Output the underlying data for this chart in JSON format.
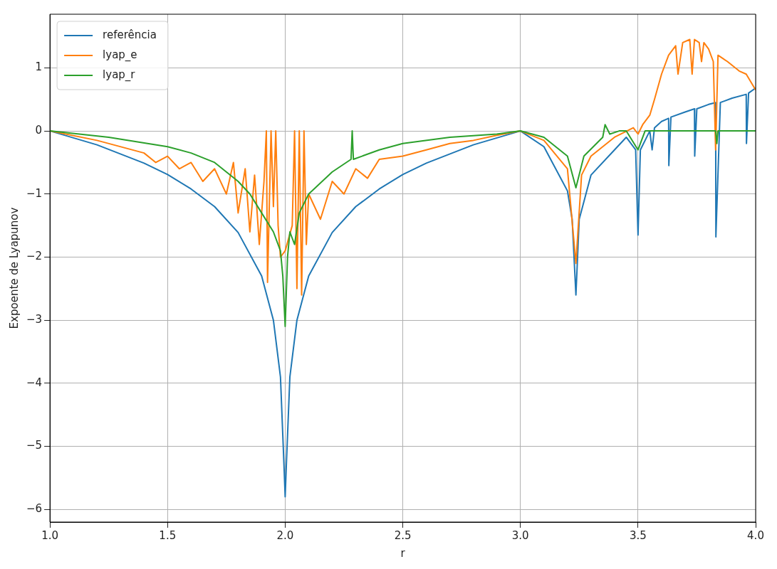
{
  "chart_data": {
    "type": "line",
    "xlabel": "r",
    "ylabel": "Expoente de Lyapunov",
    "xlim": [
      1.0,
      4.0
    ],
    "xticks": [
      {
        "value": 1.0,
        "label": "1.0"
      },
      1.5,
      {
        "value": 2.0,
        "label": "2.0"
      },
      2.5,
      {
        "value": 3.0,
        "label": "3.0"
      },
      3.5,
      {
        "value": 4.0,
        "label": "4.0"
      }
    ],
    "ylim": [
      -6.2,
      1.85
    ],
    "yticks": [
      -6,
      -5,
      -4,
      -3,
      -2,
      -1,
      0,
      1
    ],
    "grid": true,
    "legend": "top left",
    "marker": "none",
    "line_style": "solid",
    "series": [
      {
        "name": "referência",
        "color": "#1f77b4",
        "x": [
          1.0,
          1.2,
          1.4,
          1.5,
          1.6,
          1.7,
          1.8,
          1.9,
          1.95,
          1.98,
          1.995,
          2.0,
          2.005,
          2.02,
          2.05,
          2.1,
          2.2,
          2.3,
          2.4,
          2.5,
          2.6,
          2.8,
          3.0,
          3.1,
          3.2,
          3.22,
          3.236,
          3.25,
          3.3,
          3.4,
          3.45,
          3.49,
          3.5,
          3.51,
          3.55,
          3.56,
          3.57,
          3.6,
          3.63,
          3.631,
          3.64,
          3.7,
          3.74,
          3.741,
          3.75,
          3.8,
          3.83,
          3.831,
          3.85,
          3.9,
          3.96,
          3.961,
          3.97,
          4.0
        ],
        "values": [
          0,
          -0.22,
          -0.51,
          -0.69,
          -0.92,
          -1.2,
          -1.61,
          -2.3,
          -3.0,
          -3.9,
          -5.3,
          -5.8,
          -5.3,
          -3.9,
          -3.0,
          -2.3,
          -1.61,
          -1.2,
          -0.92,
          -0.69,
          -0.51,
          -0.22,
          0,
          -0.25,
          -0.95,
          -1.4,
          -2.6,
          -1.4,
          -0.7,
          -0.3,
          -0.1,
          -0.3,
          -1.65,
          -0.3,
          0.0,
          -0.3,
          0.05,
          0.15,
          0.2,
          -0.55,
          0.22,
          0.3,
          0.35,
          -0.4,
          0.35,
          0.42,
          0.45,
          -1.68,
          0.45,
          0.52,
          0.58,
          -0.2,
          0.6,
          0.68
        ]
      },
      {
        "name": "lyap_e",
        "color": "#ff7f0e",
        "x": [
          1.0,
          1.2,
          1.4,
          1.45,
          1.5,
          1.55,
          1.6,
          1.65,
          1.7,
          1.75,
          1.78,
          1.8,
          1.83,
          1.85,
          1.87,
          1.89,
          1.91,
          1.92,
          1.925,
          1.94,
          1.95,
          1.96,
          1.97,
          1.98,
          2.0,
          2.03,
          2.04,
          2.05,
          2.06,
          2.07,
          2.08,
          2.09,
          2.1,
          2.15,
          2.2,
          2.25,
          2.3,
          2.35,
          2.4,
          2.5,
          2.6,
          2.7,
          2.8,
          2.9,
          3.0,
          3.1,
          3.2,
          3.236,
          3.26,
          3.3,
          3.4,
          3.48,
          3.5,
          3.52,
          3.55,
          3.57,
          3.6,
          3.63,
          3.66,
          3.67,
          3.69,
          3.72,
          3.73,
          3.74,
          3.76,
          3.77,
          3.78,
          3.8,
          3.82,
          3.83,
          3.84,
          3.88,
          3.93,
          3.96,
          4.0
        ],
        "values": [
          0,
          -0.15,
          -0.35,
          -0.5,
          -0.4,
          -0.6,
          -0.5,
          -0.8,
          -0.6,
          -1.0,
          -0.5,
          -1.3,
          -0.6,
          -1.6,
          -0.7,
          -1.8,
          -0.8,
          0,
          -2.4,
          0,
          -1.2,
          0,
          -1.5,
          -2.0,
          -1.9,
          -1.5,
          0,
          -2.5,
          0,
          -2.6,
          0,
          -1.8,
          -1.0,
          -1.4,
          -0.8,
          -1.0,
          -0.6,
          -0.75,
          -0.45,
          -0.4,
          -0.3,
          -0.2,
          -0.15,
          -0.07,
          0,
          -0.15,
          -0.6,
          -2.1,
          -0.7,
          -0.4,
          -0.1,
          0.05,
          -0.05,
          0.1,
          0.25,
          0.5,
          0.9,
          1.2,
          1.35,
          0.9,
          1.4,
          1.45,
          0.9,
          1.45,
          1.4,
          1.1,
          1.4,
          1.3,
          1.1,
          -0.3,
          1.2,
          1.1,
          0.95,
          0.9,
          0.65
        ]
      },
      {
        "name": "lyap_r",
        "color": "#2ca02c",
        "x": [
          1.0,
          1.25,
          1.5,
          1.6,
          1.7,
          1.8,
          1.85,
          1.9,
          1.95,
          1.98,
          1.99,
          2.0,
          2.01,
          2.02,
          2.04,
          2.06,
          2.1,
          2.2,
          2.28,
          2.285,
          2.29,
          2.4,
          2.5,
          2.7,
          2.9,
          3.0,
          3.1,
          3.2,
          3.236,
          3.27,
          3.35,
          3.36,
          3.38,
          3.42,
          3.45,
          3.5,
          3.53,
          3.83,
          3.835,
          3.84,
          4.0
        ],
        "values": [
          0,
          -0.1,
          -0.25,
          -0.35,
          -0.5,
          -0.8,
          -1.0,
          -1.3,
          -1.6,
          -1.9,
          -2.3,
          -3.1,
          -2.0,
          -1.6,
          -1.8,
          -1.3,
          -1.0,
          -0.65,
          -0.45,
          0,
          -0.45,
          -0.3,
          -0.2,
          -0.1,
          -0.05,
          0,
          -0.1,
          -0.4,
          -0.9,
          -0.4,
          -0.1,
          0.1,
          -0.05,
          0,
          0,
          -0.3,
          0,
          0,
          -0.2,
          0,
          0
        ]
      }
    ]
  }
}
